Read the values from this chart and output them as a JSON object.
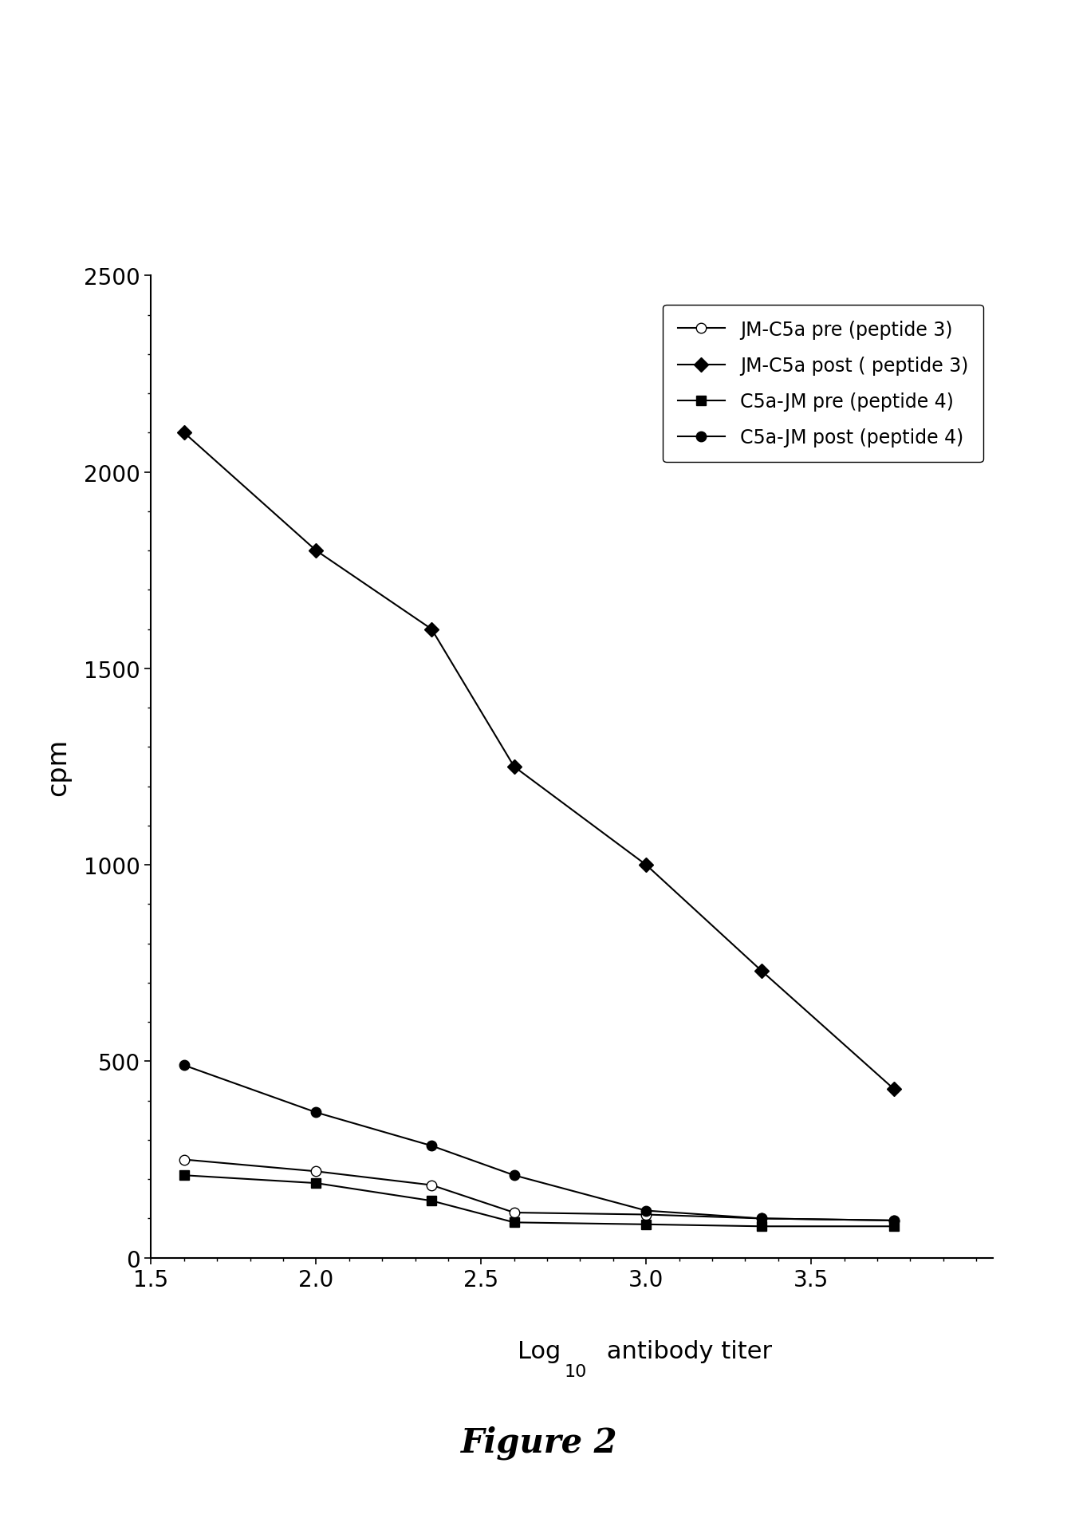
{
  "title": "Figure 2",
  "ylabel": "cpm",
  "xlim": [
    1.5,
    4.05
  ],
  "ylim": [
    0,
    2500
  ],
  "xticks": [
    1.5,
    2.0,
    2.5,
    3.0,
    3.5
  ],
  "yticks": [
    0,
    500,
    1000,
    1500,
    2000,
    2500
  ],
  "series": [
    {
      "label": "JM-C5a pre (peptide 3)",
      "x": [
        1.6,
        2.0,
        2.35,
        2.6,
        3.0,
        3.35,
        3.75
      ],
      "y": [
        250,
        220,
        185,
        115,
        110,
        100,
        95
      ],
      "marker": "o",
      "markerfacecolor": "white",
      "markeredgecolor": "black",
      "color": "black",
      "linewidth": 1.5,
      "markersize": 9,
      "linestyle": "-"
    },
    {
      "label": "JM-C5a post ( peptide 3)",
      "x": [
        1.6,
        2.0,
        2.35,
        2.6,
        3.0,
        3.35,
        3.75
      ],
      "y": [
        2100,
        1800,
        1600,
        1250,
        1000,
        730,
        430
      ],
      "marker": "D",
      "markerfacecolor": "black",
      "markeredgecolor": "black",
      "color": "black",
      "linewidth": 1.5,
      "markersize": 9,
      "linestyle": "-"
    },
    {
      "label": "C5a-JM pre (peptide 4)",
      "x": [
        1.6,
        2.0,
        2.35,
        2.6,
        3.0,
        3.35,
        3.75
      ],
      "y": [
        210,
        190,
        145,
        90,
        85,
        80,
        80
      ],
      "marker": "s",
      "markerfacecolor": "black",
      "markeredgecolor": "black",
      "color": "black",
      "linewidth": 1.5,
      "markersize": 9,
      "linestyle": "-"
    },
    {
      "label": "C5a-JM post (peptide 4)",
      "x": [
        1.6,
        2.0,
        2.35,
        2.6,
        3.0,
        3.35,
        3.75
      ],
      "y": [
        490,
        370,
        285,
        210,
        120,
        100,
        95
      ],
      "marker": "o",
      "markerfacecolor": "black",
      "markeredgecolor": "black",
      "color": "black",
      "linewidth": 1.5,
      "markersize": 9,
      "linestyle": "-"
    }
  ],
  "background_color": "#ffffff",
  "figure_width": 13.53,
  "figure_height": 19.24
}
